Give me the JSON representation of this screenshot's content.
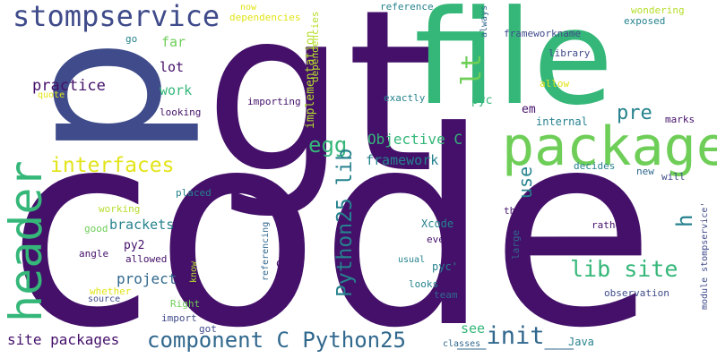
{
  "palette": {
    "dark_purple": "#44106a",
    "indigo": "#3f4b8a",
    "blue": "#31688e",
    "teal": "#26828e",
    "green": "#35b779",
    "light_green": "#6ece58",
    "yellow_green": "#b5de2b",
    "yellow": "#e2e418"
  },
  "words": [
    "code",
    "gt",
    "file",
    "p",
    "package",
    "header",
    "stompservice",
    "interfaces",
    "egg",
    "lt",
    "pre",
    "lib site",
    "component C Python25",
    "Python25 lib",
    "__init__",
    "h",
    "use",
    "Objective C",
    "framework",
    "see",
    "site packages",
    "project",
    "brackets",
    "practice",
    "work",
    "lot",
    "far",
    "implementation",
    "pyc",
    "em",
    "internal",
    "marks",
    "decides",
    "new",
    "will",
    "thing",
    "rather",
    "large",
    "wondering",
    "exposed",
    "always",
    "frameworkname",
    "library",
    "allow",
    "reference",
    "dependencies",
    "now",
    "go",
    "quote",
    "looking",
    "importing",
    "exactly",
    "placed",
    "working",
    "good",
    "py2",
    "angle",
    "allowed",
    "whether",
    "source",
    "know",
    "Right",
    "import",
    "got",
    "referencing",
    "open",
    "usual",
    "Xcode",
    "every",
    "pyc'",
    "looks",
    "team",
    "observation",
    "module stompservice'",
    "Java",
    "classes"
  ]
}
